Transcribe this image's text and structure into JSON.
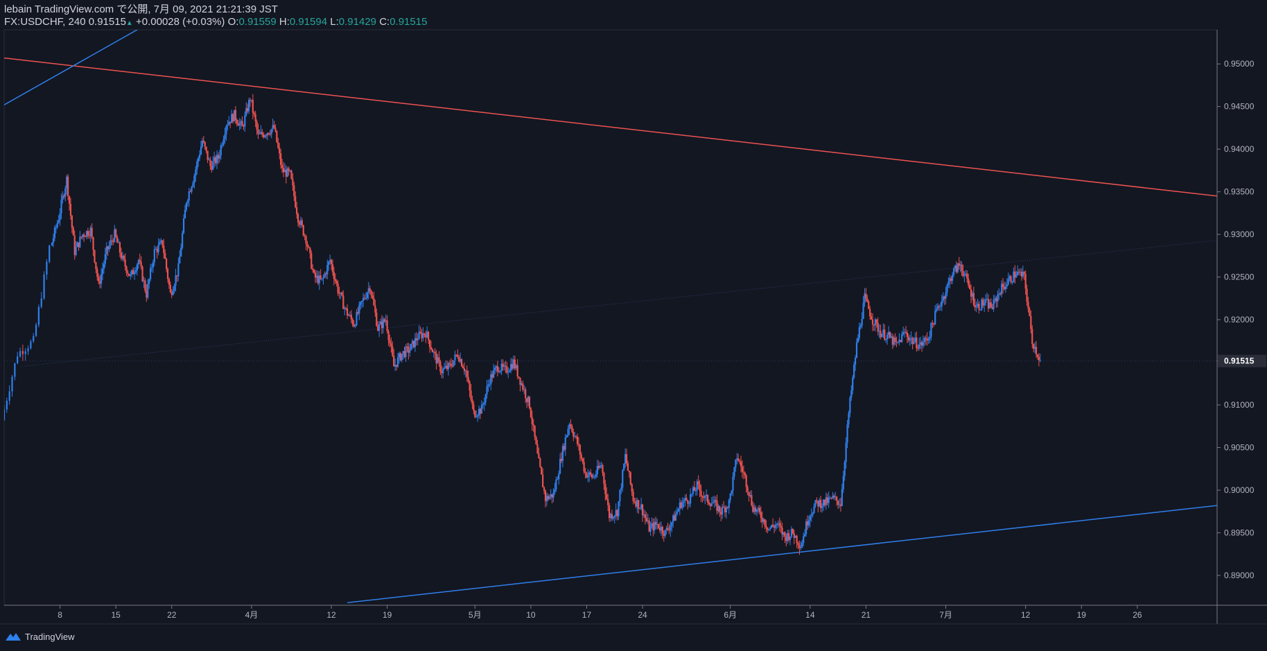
{
  "header": {
    "line1": "lebain TradingView.com で公開, 7月 09, 2021 21:21:39 JST",
    "symbol": "FX:USDCHF, 240 0.91515",
    "change": "+0.00028 (+0.03%)",
    "o_label": "O:",
    "o": "0.91559",
    "h_label": "H:",
    "h": "0.91594",
    "l_label": "L:",
    "l": "0.91429",
    "c_label": "C:",
    "c": "0.91515"
  },
  "footer": {
    "brand": "TradingView"
  },
  "colors": {
    "background": "#131722",
    "up": "#2f80ed",
    "down": "#ef5350",
    "grid_text": "#b2b5be",
    "last_price_label": "#ffffff"
  },
  "chart_data": {
    "type": "candlestick",
    "symbol": "FX:USDCHF",
    "timeframe": "240",
    "last_price": 0.91515,
    "ylim": [
      0.8865,
      0.954
    ],
    "y_ticks": [
      "0.95000",
      "0.94500",
      "0.94000",
      "0.93500",
      "0.93000",
      "0.92500",
      "0.92000",
      "0.91515",
      "0.91000",
      "0.90500",
      "0.90000",
      "0.89500",
      "0.89000"
    ],
    "x_ticks": [
      "8",
      "15",
      "22",
      "4月",
      "12",
      "19",
      "5月",
      "10",
      "17",
      "24",
      "6月",
      "14",
      "21",
      "7月",
      "12",
      "19",
      "26"
    ],
    "x_tick_positions": [
      8,
      15,
      22,
      32,
      42,
      49,
      60,
      67,
      74,
      81,
      92,
      102,
      109,
      119,
      129,
      136,
      143
    ],
    "x_range": [
      1,
      153
    ],
    "price_path": [
      [
        1,
        0.9082
      ],
      [
        3,
        0.916
      ],
      [
        5,
        0.9175
      ],
      [
        7,
        0.9285
      ],
      [
        8,
        0.932
      ],
      [
        9,
        0.9365
      ],
      [
        10,
        0.928
      ],
      [
        11,
        0.93
      ],
      [
        12,
        0.9305
      ],
      [
        13,
        0.924
      ],
      [
        14,
        0.928
      ],
      [
        15,
        0.93
      ],
      [
        16,
        0.927
      ],
      [
        17,
        0.925
      ],
      [
        18,
        0.927
      ],
      [
        19,
        0.923
      ],
      [
        20,
        0.928
      ],
      [
        21,
        0.929
      ],
      [
        22,
        0.923
      ],
      [
        23,
        0.926
      ],
      [
        24,
        0.934
      ],
      [
        25,
        0.937
      ],
      [
        26,
        0.941
      ],
      [
        27,
        0.938
      ],
      [
        28,
        0.939
      ],
      [
        29,
        0.943
      ],
      [
        30,
        0.944
      ],
      [
        31,
        0.9425
      ],
      [
        32,
        0.946
      ],
      [
        33,
        0.9415
      ],
      [
        34,
        0.942
      ],
      [
        35,
        0.9425
      ],
      [
        36,
        0.9375
      ],
      [
        37,
        0.937
      ],
      [
        38,
        0.932
      ],
      [
        39,
        0.9295
      ],
      [
        40,
        0.925
      ],
      [
        41,
        0.9245
      ],
      [
        42,
        0.927
      ],
      [
        43,
        0.9235
      ],
      [
        44,
        0.921
      ],
      [
        45,
        0.9195
      ],
      [
        46,
        0.922
      ],
      [
        47,
        0.924
      ],
      [
        48,
        0.919
      ],
      [
        49,
        0.92
      ],
      [
        50,
        0.9145
      ],
      [
        51,
        0.916
      ],
      [
        52,
        0.9165
      ],
      [
        53,
        0.918
      ],
      [
        54,
        0.9185
      ],
      [
        55,
        0.916
      ],
      [
        56,
        0.914
      ],
      [
        57,
        0.9145
      ],
      [
        58,
        0.916
      ],
      [
        59,
        0.914
      ],
      [
        60,
        0.909
      ],
      [
        61,
        0.9095
      ],
      [
        62,
        0.913
      ],
      [
        63,
        0.9145
      ],
      [
        64,
        0.914
      ],
      [
        65,
        0.915
      ],
      [
        66,
        0.9125
      ],
      [
        67,
        0.91
      ],
      [
        68,
        0.904
      ],
      [
        69,
        0.899
      ],
      [
        70,
        0.8995
      ],
      [
        71,
        0.904
      ],
      [
        72,
        0.908
      ],
      [
        73,
        0.9055
      ],
      [
        74,
        0.902
      ],
      [
        75,
        0.9015
      ],
      [
        76,
        0.903
      ],
      [
        77,
        0.897
      ],
      [
        78,
        0.8975
      ],
      [
        79,
        0.904
      ],
      [
        80,
        0.899
      ],
      [
        81,
        0.898
      ],
      [
        82,
        0.8955
      ],
      [
        83,
        0.896
      ],
      [
        84,
        0.895
      ],
      [
        85,
        0.8965
      ],
      [
        86,
        0.8985
      ],
      [
        87,
        0.899
      ],
      [
        88,
        0.9005
      ],
      [
        89,
        0.899
      ],
      [
        90,
        0.8985
      ],
      [
        91,
        0.8975
      ],
      [
        92,
        0.8985
      ],
      [
        93,
        0.904
      ],
      [
        94,
        0.9015
      ],
      [
        95,
        0.898
      ],
      [
        96,
        0.897
      ],
      [
        97,
        0.8955
      ],
      [
        98,
        0.896
      ],
      [
        99,
        0.8945
      ],
      [
        100,
        0.895
      ],
      [
        101,
        0.8935
      ],
      [
        102,
        0.897
      ],
      [
        103,
        0.8985
      ],
      [
        104,
        0.8985
      ],
      [
        105,
        0.899
      ],
      [
        106,
        0.8985
      ],
      [
        107,
        0.909
      ],
      [
        108,
        0.917
      ],
      [
        109,
        0.9225
      ],
      [
        110,
        0.92
      ],
      [
        111,
        0.9185
      ],
      [
        112,
        0.918
      ],
      [
        113,
        0.917
      ],
      [
        114,
        0.9185
      ],
      [
        115,
        0.9175
      ],
      [
        116,
        0.917
      ],
      [
        117,
        0.918
      ],
      [
        118,
        0.921
      ],
      [
        119,
        0.923
      ],
      [
        120,
        0.9255
      ],
      [
        121,
        0.9265
      ],
      [
        122,
        0.924
      ],
      [
        123,
        0.9215
      ],
      [
        124,
        0.922
      ],
      [
        125,
        0.9215
      ],
      [
        126,
        0.9235
      ],
      [
        127,
        0.9245
      ],
      [
        128,
        0.9255
      ],
      [
        129,
        0.925
      ],
      [
        130,
        0.9175
      ],
      [
        131,
        0.9152
      ]
    ],
    "trendlines": [
      {
        "color": "#ef5350",
        "x": [
          1,
          153
        ],
        "y": [
          0.9507,
          0.9345
        ],
        "width": 1.5
      },
      {
        "color": "#2f80ed",
        "x": [
          1,
          100
        ],
        "y": [
          0.9452,
          0.9975
        ],
        "width": 1.5
      },
      {
        "color": "#2f80ed",
        "x": [
          44,
          153
        ],
        "y": [
          0.8868,
          0.8982
        ],
        "width": 1.5
      },
      {
        "color": "#2a3b63",
        "x": [
          3,
          153
        ],
        "y": [
          0.9145,
          0.9293
        ],
        "width": 1,
        "dash": "1,2"
      },
      {
        "color": "#2a3b63",
        "x": [
          1,
          153
        ],
        "y": [
          0.91515,
          0.91515
        ],
        "width": 1,
        "dash": "1,3"
      }
    ]
  }
}
